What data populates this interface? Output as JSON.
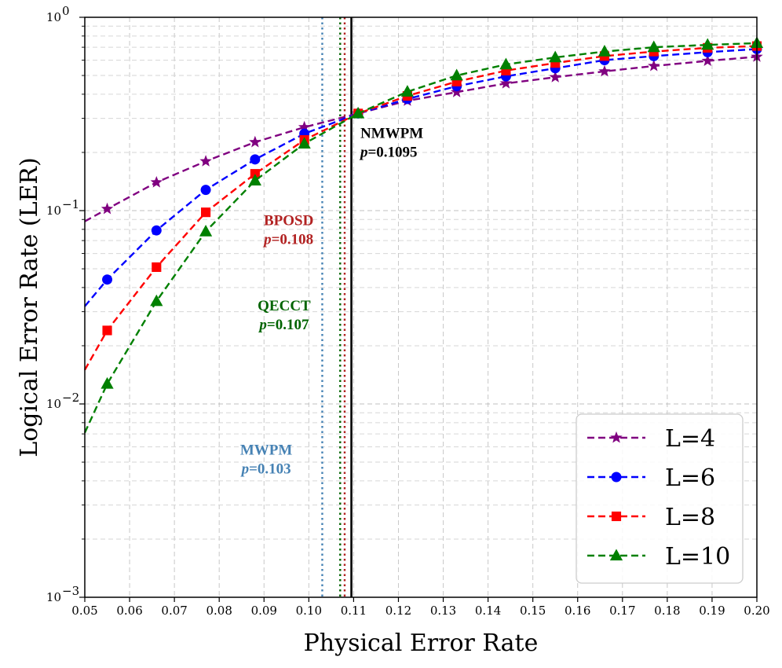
{
  "chart_data": {
    "type": "line",
    "title": "",
    "xlabel": "Physical Error Rate",
    "ylabel": "Logical Error Rate (LER)",
    "xlim": [
      0.05,
      0.2
    ],
    "ylim": [
      0.001,
      1
    ],
    "yscale": "log",
    "grid": true,
    "xticks": [
      "0.05",
      "0.06",
      "0.07",
      "0.08",
      "0.09",
      "0.10",
      "0.11",
      "0.12",
      "0.13",
      "0.14",
      "0.15",
      "0.16",
      "0.17",
      "0.18",
      "0.19",
      "0.20"
    ],
    "yticks": [
      {
        "value": 0.001,
        "base": "10",
        "exp": "−3"
      },
      {
        "value": 0.01,
        "base": "10",
        "exp": "−2"
      },
      {
        "value": 0.1,
        "base": "10",
        "exp": "−1"
      },
      {
        "value": 1,
        "base": "10",
        "exp": "0"
      }
    ],
    "series": [
      {
        "name": "L=4",
        "color": "#800080",
        "marker": "star",
        "x": [
          0.055,
          0.066,
          0.077,
          0.088,
          0.099,
          0.111,
          0.122,
          0.133,
          0.144,
          0.155,
          0.166,
          0.177,
          0.189,
          0.2
        ],
        "y": [
          0.102,
          0.14,
          0.18,
          0.226,
          0.27,
          0.318,
          0.37,
          0.41,
          0.455,
          0.49,
          0.525,
          0.56,
          0.595,
          0.625
        ],
        "curve": [
          [
            0.05,
            0.088
          ],
          [
            0.055,
            0.102
          ],
          [
            0.066,
            0.14
          ],
          [
            0.077,
            0.18
          ],
          [
            0.088,
            0.226
          ],
          [
            0.099,
            0.27
          ],
          [
            0.111,
            0.318
          ],
          [
            0.122,
            0.37
          ],
          [
            0.133,
            0.41
          ],
          [
            0.144,
            0.455
          ],
          [
            0.155,
            0.49
          ],
          [
            0.166,
            0.525
          ],
          [
            0.177,
            0.56
          ],
          [
            0.189,
            0.595
          ],
          [
            0.2,
            0.625
          ]
        ]
      },
      {
        "name": "L=6",
        "color": "#0000ff",
        "marker": "circle",
        "x": [
          0.055,
          0.066,
          0.077,
          0.088,
          0.099,
          0.111,
          0.122,
          0.133,
          0.144,
          0.155,
          0.166,
          0.177,
          0.189,
          0.2
        ],
        "y": [
          0.044,
          0.079,
          0.128,
          0.184,
          0.25,
          0.318,
          0.378,
          0.44,
          0.495,
          0.545,
          0.6,
          0.63,
          0.66,
          0.685
        ],
        "curve": [
          [
            0.05,
            0.032
          ],
          [
            0.055,
            0.044
          ],
          [
            0.066,
            0.079
          ],
          [
            0.077,
            0.128
          ],
          [
            0.088,
            0.184
          ],
          [
            0.099,
            0.25
          ],
          [
            0.111,
            0.318
          ],
          [
            0.122,
            0.378
          ],
          [
            0.133,
            0.44
          ],
          [
            0.144,
            0.495
          ],
          [
            0.155,
            0.545
          ],
          [
            0.166,
            0.6
          ],
          [
            0.177,
            0.63
          ],
          [
            0.189,
            0.66
          ],
          [
            0.2,
            0.685
          ]
        ]
      },
      {
        "name": "L=8",
        "color": "#ff0000",
        "marker": "square",
        "x": [
          0.055,
          0.066,
          0.077,
          0.088,
          0.099,
          0.111,
          0.122,
          0.133,
          0.144,
          0.155,
          0.166,
          0.177,
          0.189,
          0.2
        ],
        "y": [
          0.024,
          0.051,
          0.098,
          0.155,
          0.232,
          0.318,
          0.392,
          0.465,
          0.53,
          0.58,
          0.63,
          0.665,
          0.695,
          0.71
        ],
        "curve": [
          [
            0.05,
            0.015
          ],
          [
            0.055,
            0.024
          ],
          [
            0.066,
            0.051
          ],
          [
            0.077,
            0.098
          ],
          [
            0.088,
            0.155
          ],
          [
            0.099,
            0.232
          ],
          [
            0.111,
            0.318
          ],
          [
            0.122,
            0.392
          ],
          [
            0.133,
            0.465
          ],
          [
            0.144,
            0.53
          ],
          [
            0.155,
            0.58
          ],
          [
            0.166,
            0.63
          ],
          [
            0.177,
            0.665
          ],
          [
            0.189,
            0.695
          ],
          [
            0.2,
            0.71
          ]
        ]
      },
      {
        "name": "L=10",
        "color": "#008000",
        "marker": "triangle",
        "x": [
          0.055,
          0.066,
          0.077,
          0.088,
          0.099,
          0.111,
          0.122,
          0.133,
          0.144,
          0.155,
          0.166,
          0.177,
          0.189,
          0.2
        ],
        "y": [
          0.0127,
          0.034,
          0.078,
          0.143,
          0.222,
          0.318,
          0.412,
          0.5,
          0.57,
          0.62,
          0.665,
          0.7,
          0.72,
          0.735
        ],
        "curve": [
          [
            0.05,
            0.0071
          ],
          [
            0.055,
            0.0127
          ],
          [
            0.066,
            0.034
          ],
          [
            0.077,
            0.078
          ],
          [
            0.088,
            0.143
          ],
          [
            0.099,
            0.222
          ],
          [
            0.111,
            0.318
          ],
          [
            0.122,
            0.412
          ],
          [
            0.133,
            0.5
          ],
          [
            0.144,
            0.57
          ],
          [
            0.155,
            0.62
          ],
          [
            0.166,
            0.665
          ],
          [
            0.177,
            0.7
          ],
          [
            0.189,
            0.72
          ],
          [
            0.2,
            0.735
          ]
        ]
      }
    ],
    "thresholds": [
      {
        "name": "MWPM",
        "p": 0.103,
        "color": "#4682b4",
        "style": "dotted"
      },
      {
        "name": "QECCT",
        "p": 0.107,
        "color": "#006400",
        "style": "dotted"
      },
      {
        "name": "BPOSD",
        "p": 0.108,
        "color": "#b22222",
        "style": "dotted"
      },
      {
        "name": "NMWPM",
        "p": 0.1095,
        "color": "#000000",
        "style": "solid"
      }
    ],
    "annotations": [
      {
        "id": "mwpm",
        "title": "MWPM",
        "p_prefix": "p",
        "p_text": "=0.103",
        "color": "#4682b4",
        "x": 0.0905,
        "y": 0.00548,
        "align": "middle"
      },
      {
        "id": "qecct",
        "title": "QECCT",
        "p_prefix": "p",
        "p_text": "=0.107",
        "color": "#006400",
        "x": 0.0945,
        "y": 0.0305,
        "align": "middle"
      },
      {
        "id": "bposd",
        "title": "BPOSD",
        "p_prefix": "p",
        "p_text": "=0.108",
        "color": "#b22222",
        "x": 0.0955,
        "y": 0.084,
        "align": "middle"
      },
      {
        "id": "nmwpm",
        "title": "NMWPM",
        "p_prefix": "p",
        "p_text": "=0.1095",
        "color": "#000000",
        "x": 0.1115,
        "y": 0.238,
        "align": "start"
      }
    ],
    "legend": {
      "position": "lower-right",
      "entries": [
        "L=4",
        "L=6",
        "L=8",
        "L=10"
      ]
    }
  }
}
